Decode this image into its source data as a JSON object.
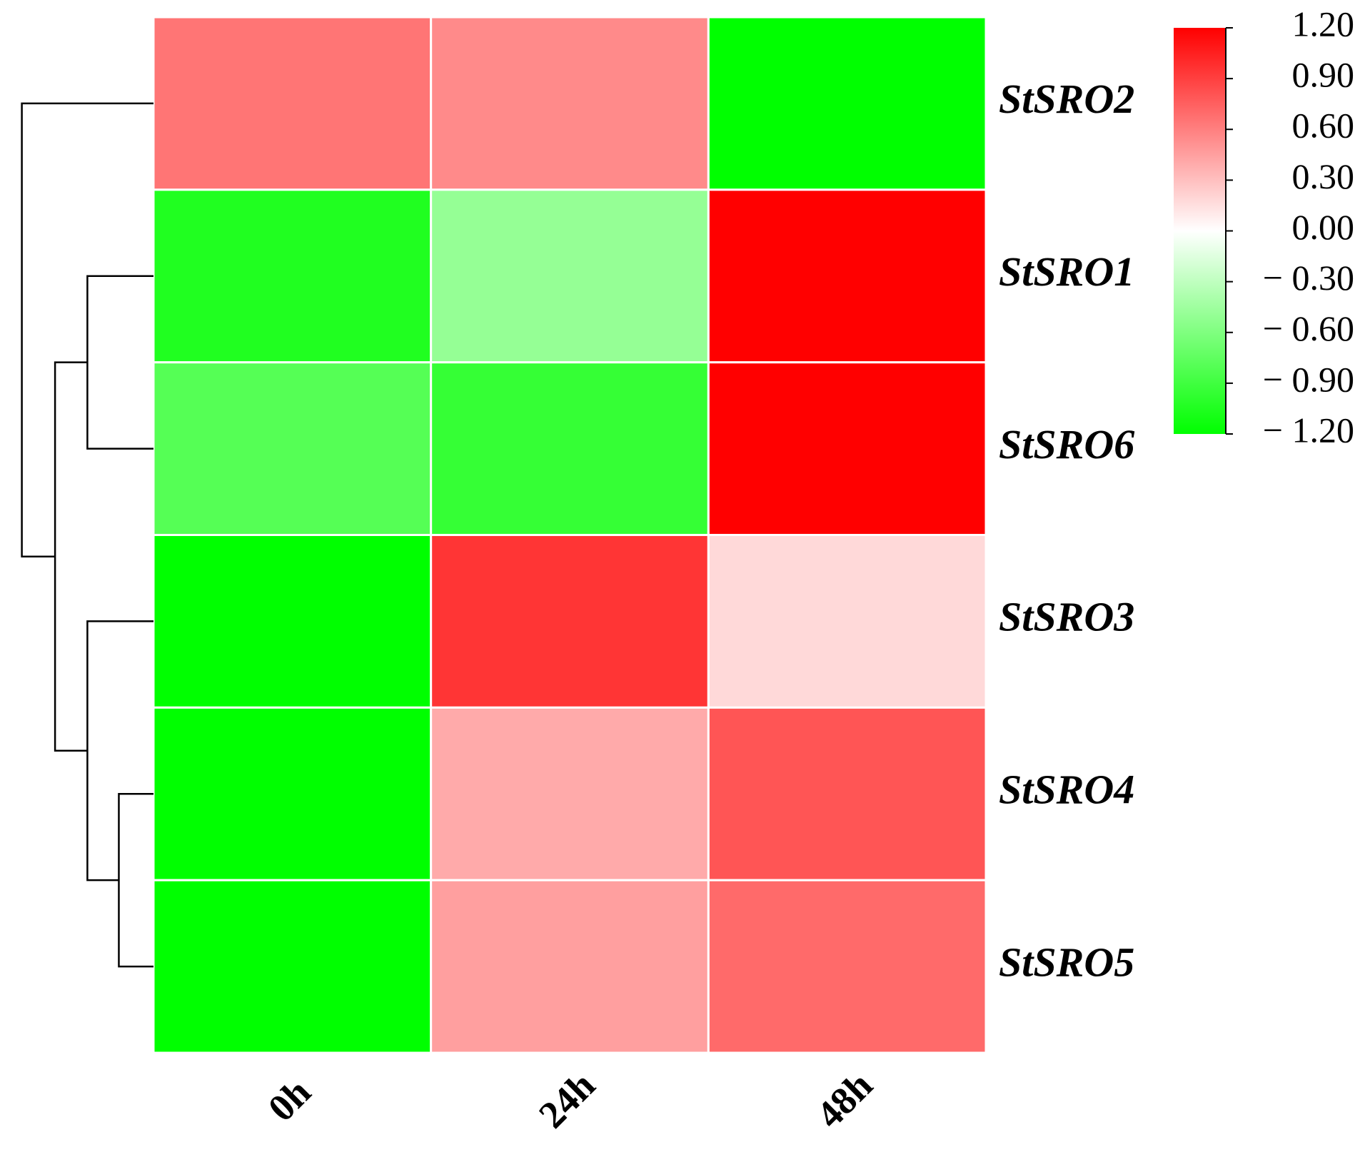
{
  "chart_data": {
    "type": "heatmap",
    "x_categories": [
      "0h",
      "24h",
      "48h"
    ],
    "y_categories": [
      "StSRO2",
      "StSRO1",
      "StSRO6",
      "StSRO3",
      "StSRO4",
      "StSRO5"
    ],
    "values": [
      [
        0.65,
        0.55,
        -1.2
      ],
      [
        -1.05,
        -0.5,
        1.2
      ],
      [
        -0.8,
        -0.95,
        1.2
      ],
      [
        -1.2,
        0.95,
        0.18
      ],
      [
        -1.2,
        0.4,
        0.8
      ],
      [
        -1.2,
        0.45,
        0.7
      ]
    ],
    "colormap": [
      "#00ff00",
      "#ffffff",
      "#ff0000"
    ],
    "clim": [
      -1.2,
      1.2
    ],
    "cticks": [
      {
        "value": 1.2,
        "label": "1.20"
      },
      {
        "value": 0.9,
        "label": "0.90"
      },
      {
        "value": 0.6,
        "label": "0.60"
      },
      {
        "value": 0.3,
        "label": "0.30"
      },
      {
        "value": 0,
        "label": "0.00"
      },
      {
        "value": -0.3,
        "label": "− 0.30"
      },
      {
        "value": -0.6,
        "label": "− 0.60"
      },
      {
        "value": -0.9,
        "label": "− 0.90"
      },
      {
        "value": -1.2,
        "label": "− 1.20"
      }
    ]
  }
}
